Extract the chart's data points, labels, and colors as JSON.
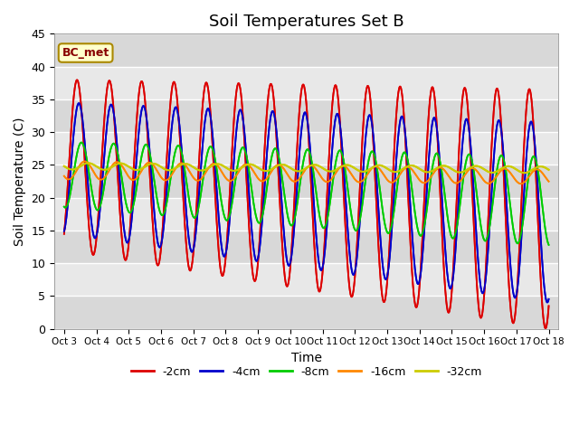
{
  "title": "Soil Temperatures Set B",
  "xlabel": "Time",
  "ylabel": "Soil Temperature (C)",
  "ylim": [
    0,
    45
  ],
  "legend_label": "BC_met",
  "series": [
    {
      "label": "-2cm",
      "color": "#dd0000",
      "lw": 1.3
    },
    {
      "label": "-4cm",
      "color": "#0000cc",
      "lw": 1.3
    },
    {
      "label": "-8cm",
      "color": "#00cc00",
      "lw": 1.3
    },
    {
      "label": "-16cm",
      "color": "#ff8800",
      "lw": 1.3
    },
    {
      "label": "-32cm",
      "color": "#cccc00",
      "lw": 1.5
    }
  ],
  "xtick_labels": [
    "Oct 3",
    "Oct 4",
    "Oct 5",
    "Oct 6",
    "Oct 7",
    "Oct 8",
    "Oct 9",
    "Oct 10",
    "Oct 11",
    "Oct 12",
    "Oct 13",
    "Oct 14",
    "Oct 15",
    "Oct 16",
    "Oct 17",
    "Oct 18"
  ],
  "ytick_vals": [
    0,
    5,
    10,
    15,
    20,
    25,
    30,
    35,
    40,
    45
  ],
  "plot_bg_color": "#e8e8e8",
  "grid_color": "white"
}
